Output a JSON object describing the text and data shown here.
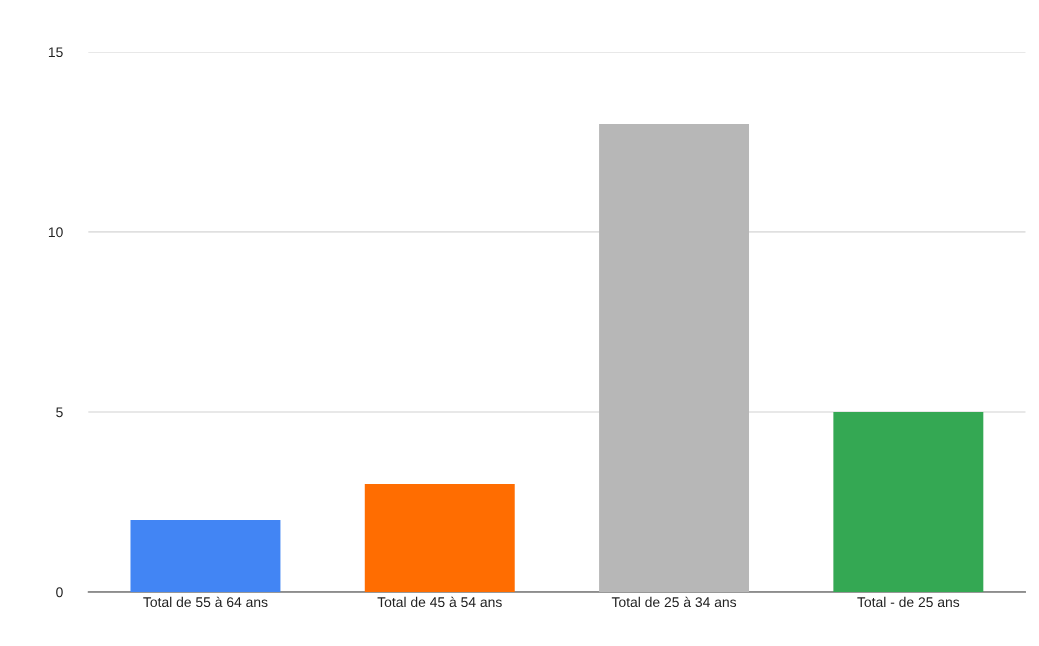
{
  "chart_data": {
    "type": "bar",
    "categories": [
      "Total de 55 à 64 ans",
      "Total de 45 à 54 ans",
      "Total de 25 à 34 ans",
      "Total - de 25 ans"
    ],
    "values": [
      2,
      3,
      13,
      5
    ],
    "colors": [
      "#4285f4",
      "#ff6d01",
      "#b7b7b7",
      "#34a853"
    ],
    "ylim": [
      0,
      15
    ],
    "yticks": [
      0,
      5,
      10,
      15
    ],
    "grid": "y",
    "legend": false
  }
}
